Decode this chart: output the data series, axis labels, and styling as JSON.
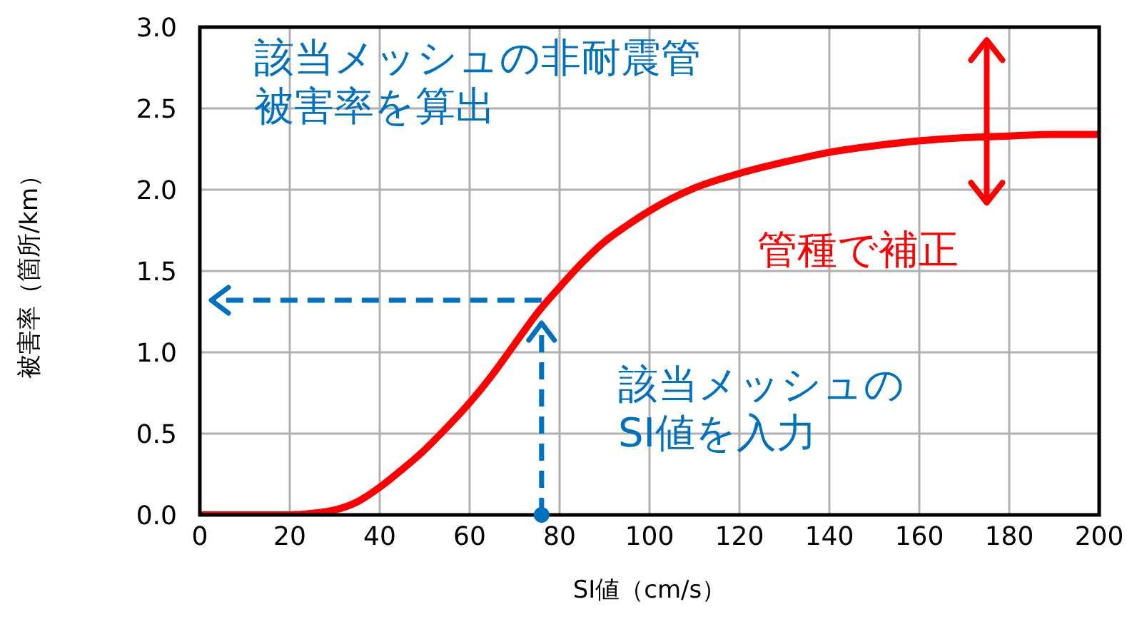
{
  "chart_data": {
    "type": "line",
    "xlabel": "SI値（cm/s）",
    "ylabel": "被害率（箇所/km）",
    "x": [
      0,
      20,
      25,
      30,
      35,
      40,
      45,
      50,
      55,
      60,
      65,
      70,
      75,
      80,
      85,
      90,
      95,
      100,
      110,
      120,
      130,
      140,
      150,
      160,
      170,
      180,
      190,
      200
    ],
    "series": [
      {
        "color": "#ff0000",
        "values": [
          0,
          0,
          0.01,
          0.03,
          0.08,
          0.17,
          0.28,
          0.4,
          0.54,
          0.69,
          0.86,
          1.05,
          1.24,
          1.4,
          1.55,
          1.68,
          1.78,
          1.87,
          2.01,
          2.1,
          2.17,
          2.23,
          2.27,
          2.3,
          2.32,
          2.33,
          2.34,
          2.34
        ]
      }
    ],
    "xlim": [
      0,
      200
    ],
    "xticks": [
      0,
      20,
      40,
      60,
      80,
      100,
      120,
      140,
      160,
      180,
      200
    ],
    "ylim": [
      0,
      3
    ],
    "yticks": [
      {
        "value": 0,
        "label": "0.0"
      },
      0.5,
      {
        "value": 1,
        "label": "1.0"
      },
      1.5,
      {
        "value": 2,
        "label": "2.0"
      },
      2.5,
      {
        "value": 3,
        "label": "3.0"
      }
    ],
    "grid": true,
    "marker": "none",
    "line_style": "solid",
    "annotations": [
      "該当メッシュの非耐震管",
      "被害率を算出",
      "管種で補正",
      "該当メッシュの",
      "SI値を入力"
    ]
  }
}
